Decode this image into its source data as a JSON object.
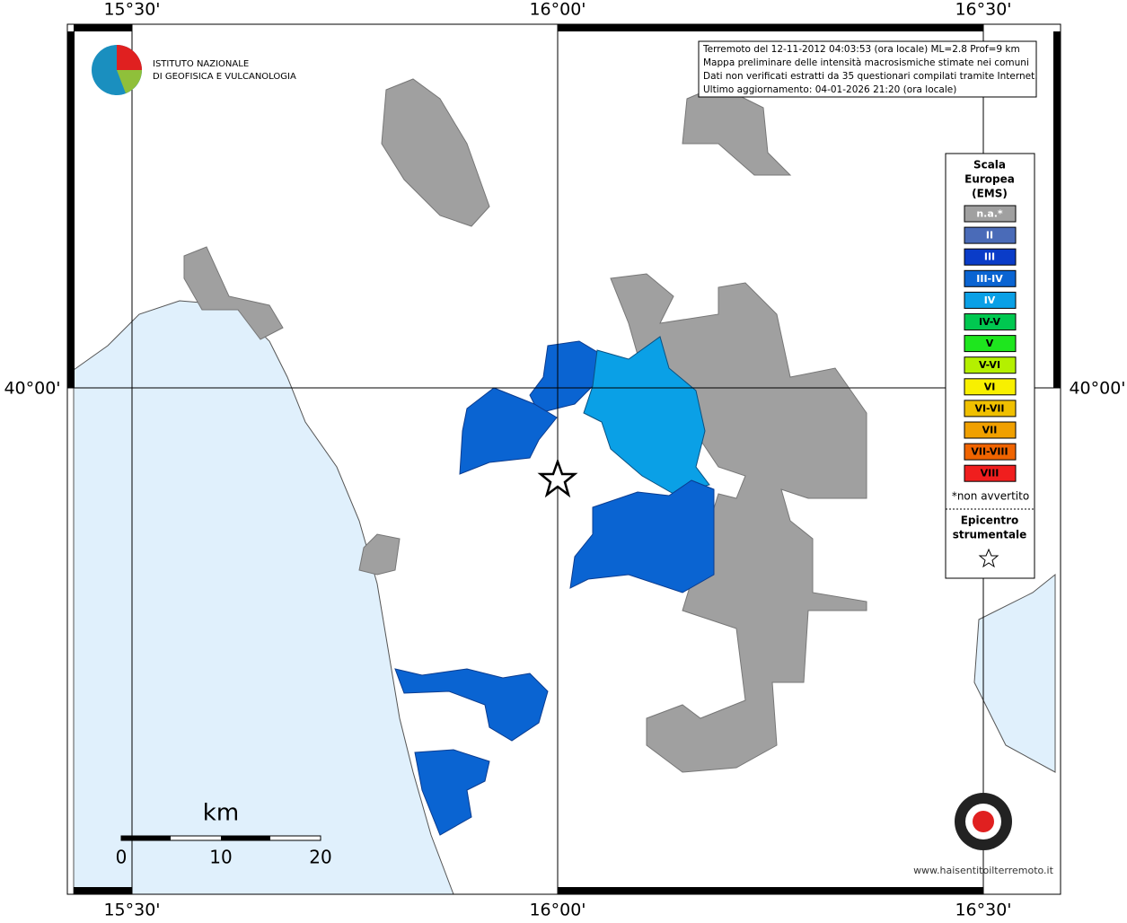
{
  "header": {
    "institute": [
      "ISTITUTO NAZIONALE",
      "DI GEOFISICA E VULCANOLOGIA"
    ],
    "info": [
      "Terremoto del 12-11-2012 04:03:53 (ora locale) ML=2.8 Prof=9 km",
      "Mappa preliminare delle intensità macrosismiche stimate nei comuni",
      "Dati non verificati estratti da 35 questionari compilati tramite Internet.",
      "Ultimo aggiornamento: 04-01-2026 21:20 (ora locale)"
    ]
  },
  "map": {
    "lon_labels": [
      "15°30'",
      "16°00'",
      "16°30'"
    ],
    "lat_labels": [
      "40°00'"
    ],
    "legend": {
      "title": [
        "Scala",
        "Europea",
        "(EMS)"
      ],
      "items": [
        {
          "label": "n.a.*",
          "color": "#a0a0a0"
        },
        {
          "label": "II",
          "color": "#4a6bb8"
        },
        {
          "label": "III",
          "color": "#0a3cc8"
        },
        {
          "label": "III-IV",
          "color": "#0a64d2"
        },
        {
          "label": "IV",
          "color": "#0aa0e6"
        },
        {
          "label": "IV-V",
          "color": "#00c850"
        },
        {
          "label": "V",
          "color": "#1ee61e"
        },
        {
          "label": "V-VI",
          "color": "#b4f000"
        },
        {
          "label": "VI",
          "color": "#f8f000"
        },
        {
          "label": "VI-VII",
          "color": "#f0c000"
        },
        {
          "label": "VII",
          "color": "#f0a000"
        },
        {
          "label": "VII-VIII",
          "color": "#f06400"
        },
        {
          "label": "VIII",
          "color": "#f01e1e"
        }
      ],
      "note": "*non avvertito",
      "epicenter": [
        "Epicentro",
        "strumentale"
      ]
    },
    "scale": {
      "unit": "km",
      "ticks": [
        0,
        10,
        20
      ]
    },
    "website": "www.haisentitoilterremoto.it"
  }
}
